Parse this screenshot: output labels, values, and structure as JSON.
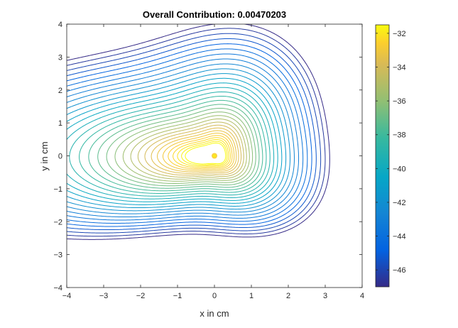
{
  "chart_data": {
    "type": "contour",
    "title": "Overall Contribution: 0.00470203",
    "xlabel": "x in cm",
    "ylabel": "y in cm",
    "xlim": [
      -4,
      4
    ],
    "ylim": [
      -4,
      4
    ],
    "xticks": [
      -4,
      -3,
      -2,
      -1,
      0,
      1,
      2,
      3,
      4
    ],
    "yticks": [
      -4,
      -3,
      -2,
      -1,
      0,
      1,
      2,
      3,
      4
    ],
    "source_point": {
      "x": 0,
      "y": 0
    },
    "levels": {
      "min": -47,
      "max": -31.5,
      "step": 0.5
    },
    "colorbar": {
      "min": -47,
      "max": -31.5,
      "ticks": [
        -46,
        -44,
        -42,
        -40,
        -38,
        -36,
        -34,
        -32
      ],
      "colormap": "parula"
    },
    "grid": false
  }
}
